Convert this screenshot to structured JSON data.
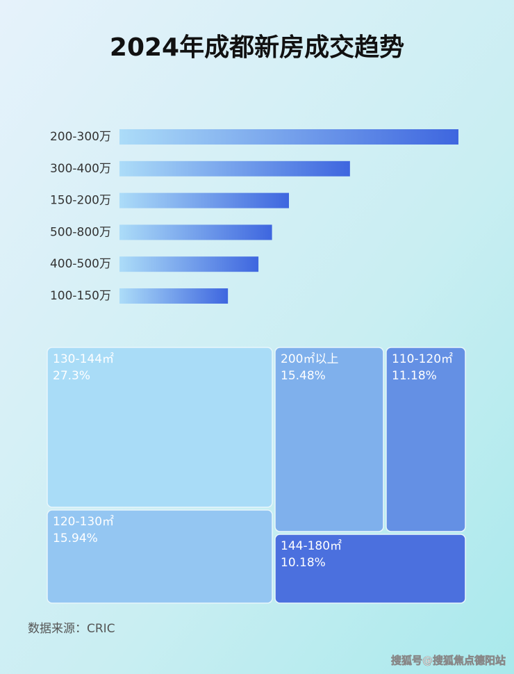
{
  "title": "2024年成都新房成交趋势",
  "chart_data": [
    {
      "type": "bar",
      "orientation": "horizontal",
      "categories": [
        "200-300万",
        "300-400万",
        "150-200万",
        "500-800万",
        "400-500万",
        "100-150万"
      ],
      "values": [
        100,
        68,
        50,
        45,
        41,
        32
      ],
      "xlim": [
        0,
        100
      ],
      "color": [
        "#acdcf8",
        "#3e66df"
      ]
    },
    {
      "type": "treemap",
      "categories": [
        "130-144㎡",
        "200㎡以上",
        "110-120㎡",
        "120-130㎡",
        "144-180㎡"
      ],
      "values": [
        27.3,
        15.48,
        11.18,
        15.94,
        10.18
      ],
      "value_labels": [
        "27.3%",
        "15.48%",
        "11.18%",
        "15.94%",
        "10.18%"
      ],
      "colors": [
        "#a9dcf7",
        "#7fb0ec",
        "#6490e4",
        "#94c6f2",
        "#4b70de"
      ]
    }
  ],
  "source": "数据来源：CRIC",
  "watermark": "搜狐号@搜狐焦点德阳站"
}
